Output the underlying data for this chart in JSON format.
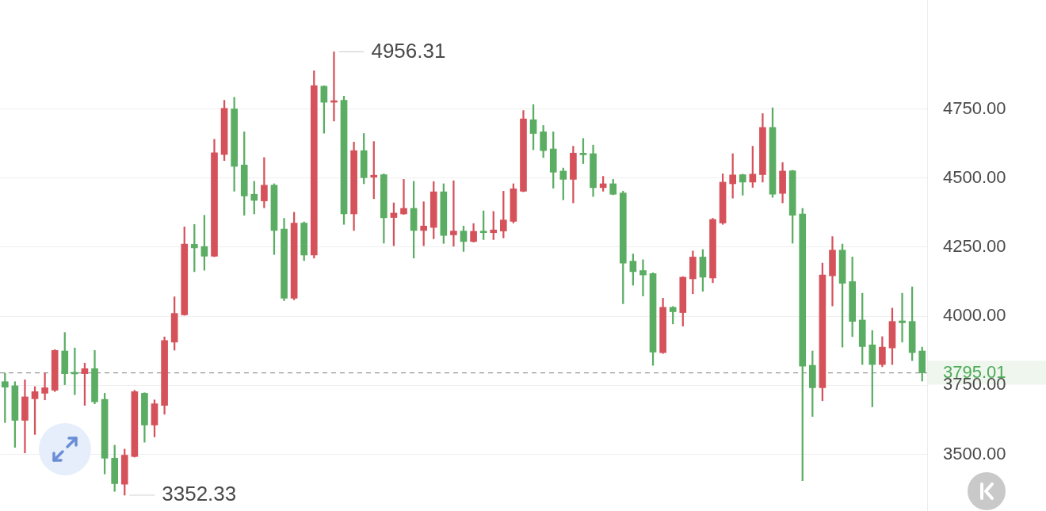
{
  "chart_data": {
    "type": "candlestick",
    "categories": [
      null,
      null,
      null,
      null,
      null,
      null,
      null,
      null,
      null,
      null,
      null,
      null,
      null,
      null,
      null,
      null,
      null,
      null,
      null,
      null,
      null,
      null,
      null,
      null,
      null,
      null,
      null,
      null,
      null,
      null,
      null,
      null,
      null,
      null,
      null,
      null,
      null,
      null,
      null,
      null,
      null,
      null,
      null,
      null,
      null,
      null,
      null,
      null,
      null,
      null,
      null,
      null,
      null,
      null,
      null,
      null,
      null,
      null,
      null,
      null,
      null,
      null,
      null,
      null,
      null,
      null,
      null,
      null,
      null,
      null,
      null,
      null,
      null,
      null,
      null,
      null,
      null,
      null,
      null,
      null,
      null,
      null,
      null,
      null,
      null,
      null,
      null,
      null,
      null,
      null,
      null,
      null,
      null
    ],
    "ohlc": [
      [
        3763,
        3794,
        3615,
        3743
      ],
      [
        3748,
        3763,
        3525,
        3623
      ],
      [
        3623,
        3770,
        3505,
        3708
      ],
      [
        3701,
        3745,
        3572,
        3727
      ],
      [
        3721,
        3794,
        3697,
        3741
      ],
      [
        3732,
        3879,
        3727,
        3876
      ],
      [
        3874,
        3941,
        3752,
        3792
      ],
      [
        3797,
        3885,
        3716,
        3791
      ],
      [
        3792,
        3830,
        3677,
        3810
      ],
      [
        3810,
        3876,
        3683,
        3690
      ],
      [
        3699,
        3721,
        3429,
        3486
      ],
      [
        3486,
        3533,
        3366,
        3394
      ],
      [
        3392,
        3519,
        3352.33,
        3497
      ],
      [
        3492,
        3732,
        3490,
        3727
      ],
      [
        3721,
        3723,
        3544,
        3606
      ],
      [
        3606,
        3697,
        3563,
        3683
      ],
      [
        3677,
        3925,
        3645,
        3912
      ],
      [
        3906,
        4070,
        3877,
        4010
      ],
      [
        4005,
        4323,
        4003,
        4261
      ],
      [
        4260,
        4332,
        4161,
        4247
      ],
      [
        4252,
        4365,
        4166,
        4217
      ],
      [
        4217,
        4640,
        4215,
        4591
      ],
      [
        4585,
        4781,
        4563,
        4752
      ],
      [
        4750,
        4792,
        4452,
        4542
      ],
      [
        4547,
        4667,
        4365,
        4435
      ],
      [
        4441,
        4488,
        4370,
        4419
      ],
      [
        4417,
        4574,
        4392,
        4474
      ],
      [
        4474,
        4479,
        4223,
        4310
      ],
      [
        4315,
        4354,
        4056,
        4065
      ],
      [
        4065,
        4376,
        4059,
        4337
      ],
      [
        4337,
        4341,
        4201,
        4221
      ],
      [
        4221,
        4888,
        4210,
        4834
      ],
      [
        4832,
        4834,
        4662,
        4774
      ],
      [
        4774,
        4956.31,
        4706,
        4779
      ],
      [
        4781,
        4796,
        4332,
        4370
      ],
      [
        4370,
        4630,
        4310,
        4599
      ],
      [
        4599,
        4661,
        4479,
        4501
      ],
      [
        4503,
        4632,
        4425,
        4510
      ],
      [
        4512,
        4515,
        4264,
        4356
      ],
      [
        4357,
        4410,
        4255,
        4373
      ],
      [
        4370,
        4495,
        4368,
        4390
      ],
      [
        4390,
        4488,
        4210,
        4310
      ],
      [
        4310,
        4414,
        4255,
        4326
      ],
      [
        4321,
        4487,
        4280,
        4450
      ],
      [
        4450,
        4479,
        4263,
        4292
      ],
      [
        4294,
        4490,
        4253,
        4308
      ],
      [
        4308,
        4326,
        4234,
        4270
      ],
      [
        4270,
        4335,
        4268,
        4307
      ],
      [
        4307,
        4381,
        4277,
        4302
      ],
      [
        4302,
        4379,
        4277,
        4312
      ],
      [
        4308,
        4452,
        4283,
        4348
      ],
      [
        4343,
        4479,
        4337,
        4461
      ],
      [
        4452,
        4744,
        4450,
        4714
      ],
      [
        4711,
        4766,
        4602,
        4661
      ],
      [
        4667,
        4690,
        4574,
        4599
      ],
      [
        4605,
        4667,
        4463,
        4521
      ],
      [
        4525,
        4536,
        4421,
        4495
      ],
      [
        4495,
        4615,
        4410,
        4590
      ],
      [
        4588,
        4643,
        4552,
        4584
      ],
      [
        4588,
        4619,
        4433,
        4465
      ],
      [
        4465,
        4506,
        4452,
        4479
      ],
      [
        4479,
        4495,
        4439,
        4441
      ],
      [
        4446,
        4452,
        4045,
        4192
      ],
      [
        4199,
        4225,
        4112,
        4161
      ],
      [
        4165,
        4204,
        4073,
        4149
      ],
      [
        4154,
        4157,
        3822,
        3870
      ],
      [
        3868,
        4065,
        3865,
        4032
      ],
      [
        4032,
        4035,
        3972,
        4016
      ],
      [
        4013,
        4143,
        3964,
        4141
      ],
      [
        4135,
        4236,
        4081,
        4214
      ],
      [
        4214,
        4241,
        4090,
        4141
      ],
      [
        4138,
        4354,
        4121,
        4350
      ],
      [
        4337,
        4515,
        4332,
        4485
      ],
      [
        4479,
        4588,
        4427,
        4511
      ],
      [
        4512,
        4514,
        4438,
        4485
      ],
      [
        4485,
        4615,
        4466,
        4514
      ],
      [
        4512,
        4733,
        4485,
        4683
      ],
      [
        4683,
        4754,
        4430,
        4441
      ],
      [
        4444,
        4556,
        4410,
        4525
      ],
      [
        4526,
        4528,
        4264,
        4365
      ],
      [
        4370,
        4390,
        3405,
        3819
      ],
      [
        3822,
        3874,
        3637,
        3741
      ],
      [
        3741,
        4192,
        3694,
        4149
      ],
      [
        4146,
        4288,
        4037,
        4239
      ],
      [
        4239,
        4261,
        3888,
        4119
      ],
      [
        4125,
        4214,
        3926,
        3981
      ],
      [
        3986,
        4083,
        3825,
        3890
      ],
      [
        3896,
        3948,
        3672,
        3825
      ],
      [
        3825,
        3926,
        3817,
        3888
      ],
      [
        3885,
        4029,
        3825,
        3981
      ],
      [
        3983,
        4083,
        3906,
        3976
      ],
      [
        3981,
        4106,
        3839,
        3868
      ],
      [
        3874,
        3888,
        3765,
        3795.01
      ]
    ],
    "colors": [
      "#5aad62",
      "#5aad62",
      "#d6525b",
      "#d6525b",
      "#d6525b",
      "#d6525b",
      "#5aad62",
      "#5aad62",
      "#d6525b",
      "#5aad62",
      "#5aad62",
      "#5aad62",
      "#d6525b",
      "#d6525b",
      "#5aad62",
      "#d6525b",
      "#d6525b",
      "#d6525b",
      "#d6525b",
      "#5aad62",
      "#5aad62",
      "#d6525b",
      "#d6525b",
      "#5aad62",
      "#5aad62",
      "#5aad62",
      "#d6525b",
      "#5aad62",
      "#5aad62",
      "#d6525b",
      "#5aad62",
      "#d6525b",
      "#5aad62",
      "#d6525b",
      "#5aad62",
      "#d6525b",
      "#5aad62",
      "#d6525b",
      "#5aad62",
      "#d6525b",
      "#d6525b",
      "#5aad62",
      "#d6525b",
      "#d6525b",
      "#5aad62",
      "#d6525b",
      "#5aad62",
      "#d6525b",
      "#5aad62",
      "#d6525b",
      "#d6525b",
      "#d6525b",
      "#d6525b",
      "#5aad62",
      "#5aad62",
      "#5aad62",
      "#5aad62",
      "#d6525b",
      "#5aad62",
      "#5aad62",
      "#d6525b",
      "#5aad62",
      "#5aad62",
      "#5aad62",
      "#5aad62",
      "#5aad62",
      "#d6525b",
      "#5aad62",
      "#d6525b",
      "#d6525b",
      "#5aad62",
      "#d6525b",
      "#d6525b",
      "#d6525b",
      "#5aad62",
      "#d6525b",
      "#d6525b",
      "#5aad62",
      "#d6525b",
      "#5aad62",
      "#5aad62",
      "#5aad62",
      "#d6525b",
      "#d6525b",
      "#5aad62",
      "#5aad62",
      "#5aad62",
      "#5aad62",
      "#d6525b",
      "#d6525b",
      "#5aad62",
      "#5aad62",
      "#5aad62"
    ],
    "ylim": [
      3295,
      5144
    ],
    "yticks": [
      {
        "value": 3500,
        "label": "3500.00"
      },
      {
        "value": 3750,
        "label": "3750.00"
      },
      {
        "value": 4000,
        "label": "4000.00"
      },
      {
        "value": 4250,
        "label": "4250.00"
      },
      {
        "value": 4500,
        "label": "4500.00"
      },
      {
        "value": 4750,
        "label": "4750.00"
      }
    ],
    "grid": "y",
    "tick_labels": "y",
    "ref_lines": [
      {
        "axis": "y",
        "value": 3795.01,
        "label": "3795.01",
        "color": "#9a9a9a",
        "line_style": "dashed"
      }
    ],
    "annotations": [
      "4956.31",
      "3352.33"
    ]
  }
}
